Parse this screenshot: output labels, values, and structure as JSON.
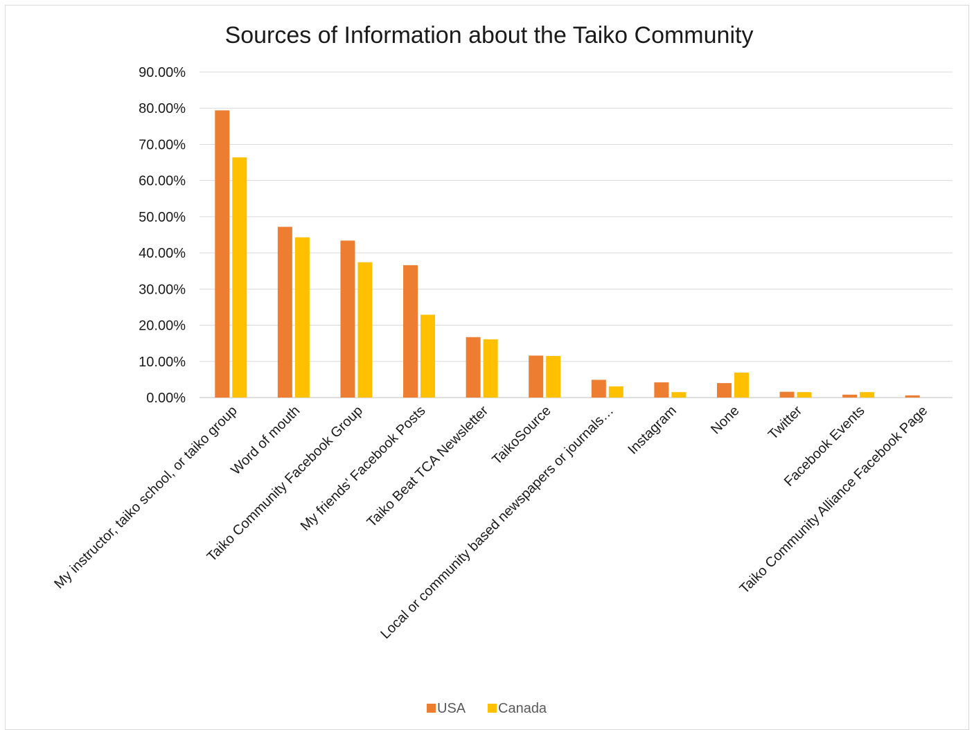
{
  "chart_data": {
    "type": "bar",
    "title": "Sources of Information about the Taiko Community",
    "xlabel": "",
    "ylabel": "",
    "ylim": [
      0,
      0.9
    ],
    "yticks": [
      "0.00%",
      "10.00%",
      "20.00%",
      "30.00%",
      "40.00%",
      "50.00%",
      "60.00%",
      "70.00%",
      "80.00%",
      "90.00%"
    ],
    "grid": true,
    "legend_position": "bottom",
    "categories": [
      "My instructor, taiko school, or taiko group",
      "Word of mouth",
      "Taiko Community Facebook Group",
      "My friends' Facebook Posts",
      "Taiko Beat TCA Newsletter",
      "TaikoSource",
      "Local or community based newspapers or journals…",
      "Instagram",
      "None",
      "Twitter",
      "Facebook Events",
      "Taiko Community Alliance Facebook Page"
    ],
    "series": [
      {
        "name": "USA",
        "color": "#ED7D31",
        "values": [
          0.794,
          0.472,
          0.434,
          0.366,
          0.167,
          0.116,
          0.049,
          0.042,
          0.04,
          0.016,
          0.008,
          0.006
        ]
      },
      {
        "name": "Canada",
        "color": "#FFC000",
        "values": [
          0.664,
          0.443,
          0.374,
          0.229,
          0.161,
          0.115,
          0.031,
          0.015,
          0.069,
          0.015,
          0.015,
          0.0
        ]
      }
    ]
  }
}
